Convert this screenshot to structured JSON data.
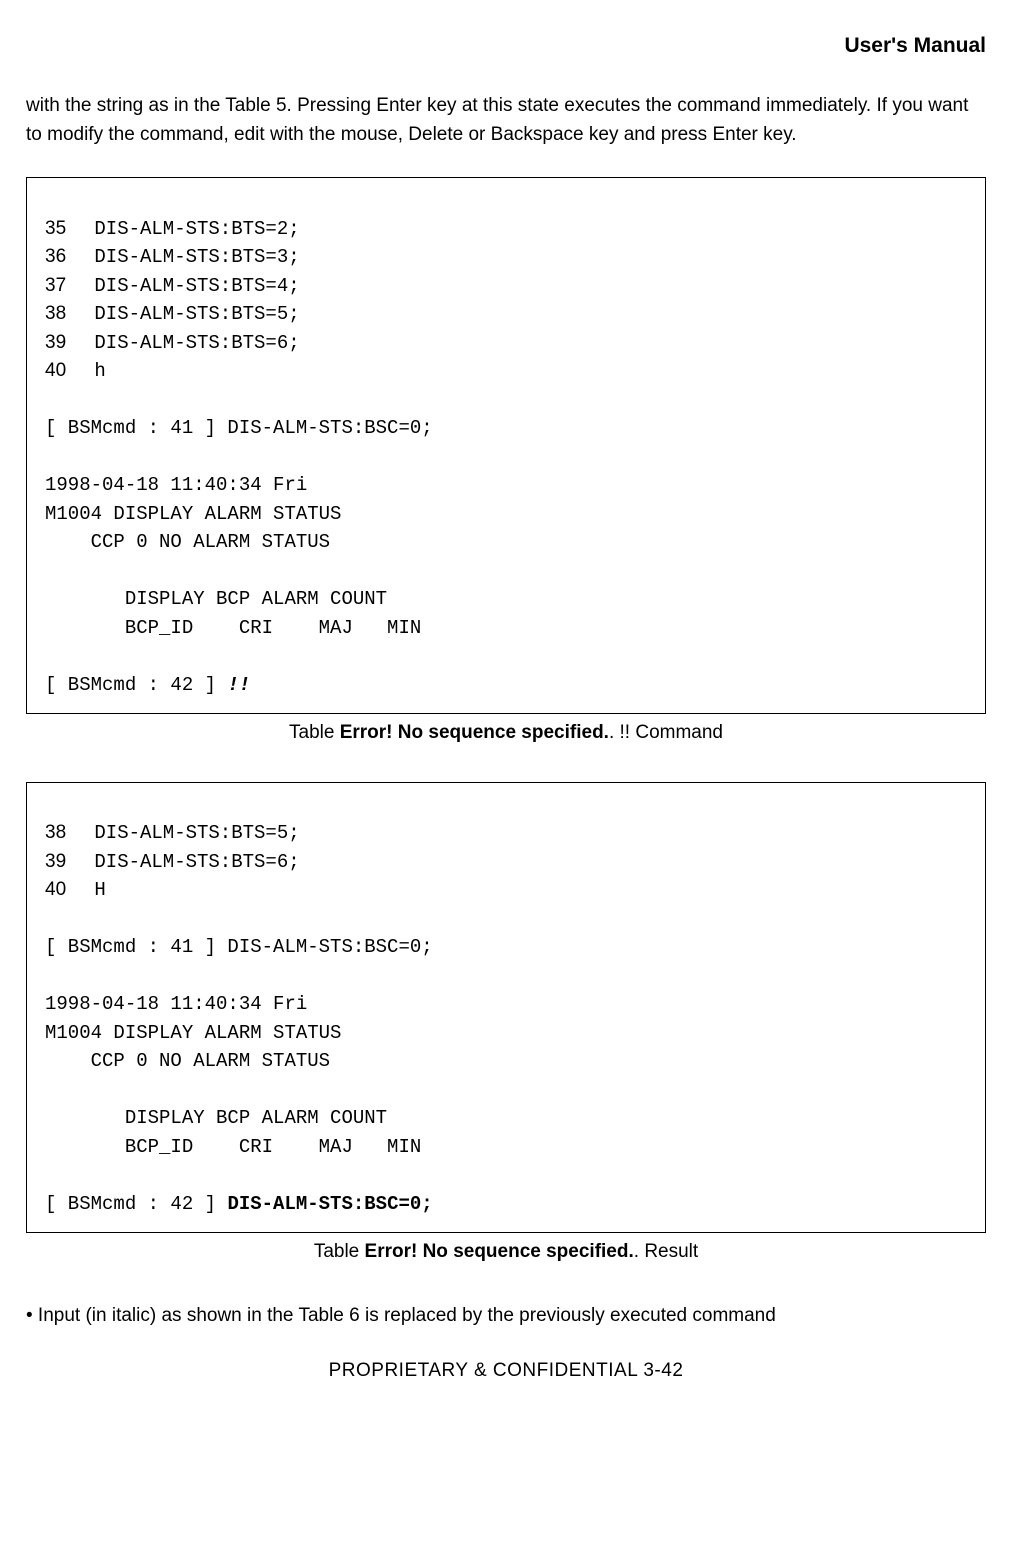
{
  "header": "User's Manual",
  "para1": "with the string as in the Table 5. Pressing Enter key at this state executes the command immediately. If you want to modify the command, edit with the mouse, Delete or Backspace key and press Enter key.",
  "box1": {
    "lines": [
      {
        "num": "35",
        "cmd": "DIS-ALM-STS:BTS=2;"
      },
      {
        "num": "36",
        "cmd": "DIS-ALM-STS:BTS=3;"
      },
      {
        "num": "37",
        "cmd": "DIS-ALM-STS:BTS=4;"
      },
      {
        "num": "38",
        "cmd": "DIS-ALM-STS:BTS=5;"
      },
      {
        "num": "39",
        "cmd": "DIS-ALM-STS:BTS=6;"
      },
      {
        "num": "40",
        "cmd": "h"
      }
    ],
    "bsm41": "[ BSMcmd : 41 ] DIS-ALM-STS:BSC=0;",
    "ts": "1998-04-18 11:40:34 Fri",
    "m1": "M1004 DISPLAY ALARM STATUS",
    "m2": "    CCP 0 NO ALARM STATUS",
    "m3": "       DISPLAY BCP ALARM COUNT",
    "m4": "       BCP_ID    CRI    MAJ   MIN",
    "bsm42_prefix": "[ BSMcmd : 42 ] ",
    "bsm42_bold": "!!"
  },
  "caption1_pre": "Table ",
  "caption1_err": "Error! No sequence specified.",
  "caption1_post": ". !! Command",
  "box2": {
    "lines": [
      {
        "num": "38",
        "cmd": "DIS-ALM-STS:BTS=5;"
      },
      {
        "num": "39",
        "cmd": "DIS-ALM-STS:BTS=6;"
      },
      {
        "num": "40",
        "cmd": "H"
      }
    ],
    "bsm41": "[ BSMcmd : 41 ] DIS-ALM-STS:BSC=0;",
    "ts": "1998-04-18 11:40:34 Fri",
    "m1": "M1004 DISPLAY ALARM STATUS",
    "m2": "    CCP 0 NO ALARM STATUS",
    "m3": "       DISPLAY BCP ALARM COUNT",
    "m4": "       BCP_ID    CRI    MAJ   MIN",
    "bsm42_prefix": "[ BSMcmd : 42 ] ",
    "bsm42_bold": "DIS-ALM-STS:BSC=0;"
  },
  "caption2_pre": "Table ",
  "caption2_err": "Error! No sequence specified.",
  "caption2_post": ". Result",
  "bullet": "•  Input (in italic) as shown in the Table 6 is replaced by the previously executed command",
  "footer": "PROPRIETARY & CONFIDENTIAL               3-42"
}
